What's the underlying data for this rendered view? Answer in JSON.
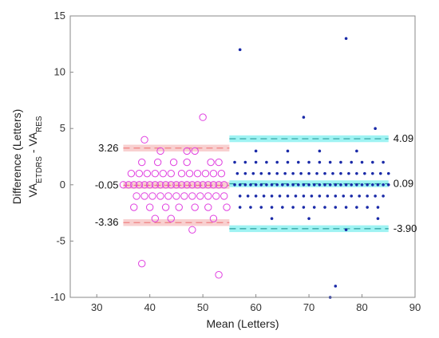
{
  "chart_data": {
    "type": "scatter",
    "title": "",
    "xlabel": "Mean (Letters)",
    "ylabel_line1": "Difference (Letters)",
    "ylabel_line2": {
      "prefix": "VA",
      "sub1": "ETDRS",
      "mid": " - VA",
      "sub2": "RES"
    },
    "xlim": [
      25,
      90
    ],
    "ylim": [
      -10,
      15
    ],
    "xticks": [
      30,
      40,
      50,
      60,
      70,
      80,
      90
    ],
    "yticks": [
      -10,
      -5,
      0,
      5,
      10,
      15
    ],
    "grid": false,
    "series": [
      {
        "marker": "circle",
        "color": "#e040e0",
        "x_range": [
          35,
          55
        ],
        "points": [
          [
            35,
            0
          ],
          [
            36,
            0
          ],
          [
            37,
            0
          ],
          [
            38,
            0
          ],
          [
            39,
            0
          ],
          [
            40,
            0
          ],
          [
            41,
            0
          ],
          [
            42,
            0
          ],
          [
            43,
            0
          ],
          [
            44,
            0
          ],
          [
            45,
            0
          ],
          [
            46,
            0
          ],
          [
            47,
            0
          ],
          [
            48,
            0
          ],
          [
            49,
            0
          ],
          [
            50,
            0
          ],
          [
            51,
            0
          ],
          [
            52,
            0
          ],
          [
            53,
            0
          ],
          [
            54,
            0
          ],
          [
            36.5,
            1
          ],
          [
            38,
            1
          ],
          [
            39.5,
            1
          ],
          [
            41,
            1
          ],
          [
            42.5,
            1
          ],
          [
            44,
            1
          ],
          [
            46,
            1
          ],
          [
            47.5,
            1
          ],
          [
            49,
            1
          ],
          [
            50.5,
            1
          ],
          [
            52,
            1
          ],
          [
            53.5,
            1
          ],
          [
            37.5,
            -1
          ],
          [
            39,
            -1
          ],
          [
            40.5,
            -1
          ],
          [
            42,
            -1
          ],
          [
            43.5,
            -1
          ],
          [
            45,
            -1
          ],
          [
            46.5,
            -1
          ],
          [
            48,
            -1
          ],
          [
            49.5,
            -1
          ],
          [
            51,
            -1
          ],
          [
            52.5,
            -1
          ],
          [
            54,
            -1
          ],
          [
            38.5,
            2
          ],
          [
            41.5,
            2
          ],
          [
            44.5,
            2
          ],
          [
            47,
            2
          ],
          [
            51.5,
            2
          ],
          [
            53,
            2
          ],
          [
            37,
            -2
          ],
          [
            40,
            -2
          ],
          [
            43,
            -2
          ],
          [
            45.5,
            -2
          ],
          [
            48.5,
            -2
          ],
          [
            51,
            -2
          ],
          [
            54.5,
            -2
          ],
          [
            39,
            4
          ],
          [
            42,
            3
          ],
          [
            47,
            3
          ],
          [
            48.5,
            3
          ],
          [
            50,
            6
          ],
          [
            41,
            -3
          ],
          [
            44,
            -3
          ],
          [
            52,
            -3
          ],
          [
            48,
            -4
          ],
          [
            38.5,
            -7
          ],
          [
            53,
            -8
          ]
        ]
      },
      {
        "marker": "dot",
        "color": "#1a2aa8",
        "x_range": [
          55,
          85
        ],
        "points": [
          [
            56,
            0
          ],
          [
            57,
            0
          ],
          [
            58,
            0
          ],
          [
            59,
            0
          ],
          [
            60,
            0
          ],
          [
            61,
            0
          ],
          [
            62,
            0
          ],
          [
            63,
            0
          ],
          [
            64,
            0
          ],
          [
            65,
            0
          ],
          [
            66,
            0
          ],
          [
            67,
            0
          ],
          [
            68,
            0
          ],
          [
            69,
            0
          ],
          [
            70,
            0
          ],
          [
            71,
            0
          ],
          [
            72,
            0
          ],
          [
            73,
            0
          ],
          [
            74,
            0
          ],
          [
            75,
            0
          ],
          [
            76,
            0
          ],
          [
            77,
            0
          ],
          [
            78,
            0
          ],
          [
            79,
            0
          ],
          [
            80,
            0
          ],
          [
            81,
            0
          ],
          [
            82,
            0
          ],
          [
            83,
            0
          ],
          [
            84,
            0
          ],
          [
            85,
            0
          ],
          [
            56.5,
            1
          ],
          [
            58,
            1
          ],
          [
            59.5,
            1
          ],
          [
            61,
            1
          ],
          [
            62.5,
            1
          ],
          [
            64,
            1
          ],
          [
            65.5,
            1
          ],
          [
            67,
            1
          ],
          [
            68.5,
            1
          ],
          [
            70,
            1
          ],
          [
            71.5,
            1
          ],
          [
            73,
            1
          ],
          [
            74.5,
            1
          ],
          [
            76,
            1
          ],
          [
            77.5,
            1
          ],
          [
            79,
            1
          ],
          [
            80.5,
            1
          ],
          [
            82,
            1
          ],
          [
            83.5,
            1
          ],
          [
            85,
            1
          ],
          [
            57,
            -1
          ],
          [
            58.5,
            -1
          ],
          [
            60,
            -1
          ],
          [
            61.5,
            -1
          ],
          [
            63,
            -1
          ],
          [
            64.5,
            -1
          ],
          [
            66,
            -1
          ],
          [
            67.5,
            -1
          ],
          [
            69,
            -1
          ],
          [
            70.5,
            -1
          ],
          [
            72,
            -1
          ],
          [
            73.5,
            -1
          ],
          [
            75,
            -1
          ],
          [
            76.5,
            -1
          ],
          [
            78,
            -1
          ],
          [
            79.5,
            -1
          ],
          [
            81,
            -1
          ],
          [
            82.5,
            -1
          ],
          [
            84,
            -1
          ],
          [
            56,
            2
          ],
          [
            58,
            2
          ],
          [
            60,
            2
          ],
          [
            62,
            2
          ],
          [
            64,
            2
          ],
          [
            66,
            2
          ],
          [
            68,
            2
          ],
          [
            70,
            2
          ],
          [
            72,
            2
          ],
          [
            74,
            2
          ],
          [
            76,
            2
          ],
          [
            78,
            2
          ],
          [
            80,
            2
          ],
          [
            82,
            2
          ],
          [
            84,
            2
          ],
          [
            57,
            -2
          ],
          [
            59,
            -2
          ],
          [
            61,
            -2
          ],
          [
            63,
            -2
          ],
          [
            65,
            -2
          ],
          [
            67,
            -2
          ],
          [
            69,
            -2
          ],
          [
            71,
            -2
          ],
          [
            73,
            -2
          ],
          [
            75,
            -2
          ],
          [
            77,
            -2
          ],
          [
            79,
            -2
          ],
          [
            81,
            -2
          ],
          [
            83,
            -2
          ],
          [
            60,
            3
          ],
          [
            66,
            3
          ],
          [
            72,
            3
          ],
          [
            79,
            3
          ],
          [
            63,
            -3
          ],
          [
            70,
            -3
          ],
          [
            83,
            -3
          ],
          [
            82.5,
            5
          ],
          [
            69,
            6
          ],
          [
            77,
            -4
          ],
          [
            57,
            12
          ],
          [
            77,
            13
          ],
          [
            75,
            -9
          ],
          [
            74,
            -10
          ]
        ]
      }
    ],
    "bands": [
      {
        "label": "3.26",
        "value": 3.26,
        "x_range": [
          35,
          55
        ],
        "band_half": 0.3,
        "color": "#f08080",
        "fill": "#f6c0c0",
        "label_side": "left"
      },
      {
        "label": "-0.05",
        "value": -0.05,
        "x_range": [
          35,
          55
        ],
        "band_half": 0.3,
        "color": "#f08080",
        "fill": "#f6c0c0",
        "label_side": "left"
      },
      {
        "label": "-3.36",
        "value": -3.36,
        "x_range": [
          35,
          55
        ],
        "band_half": 0.3,
        "color": "#f08080",
        "fill": "#f6c0c0",
        "label_side": "left"
      },
      {
        "label": "4.09",
        "value": 4.09,
        "x_range": [
          55,
          85
        ],
        "band_half": 0.3,
        "color": "#2a9d9d",
        "fill": "#7fefef",
        "label_side": "right"
      },
      {
        "label": "0.09",
        "value": 0.09,
        "x_range": [
          55,
          85
        ],
        "band_half": 0.3,
        "color": "#2a9d9d",
        "fill": "#7fefef",
        "label_side": "right"
      },
      {
        "label": "-3.90",
        "value": -3.9,
        "x_range": [
          55,
          85
        ],
        "band_half": 0.3,
        "color": "#2a9d9d",
        "fill": "#7fefef",
        "label_side": "right"
      }
    ]
  }
}
